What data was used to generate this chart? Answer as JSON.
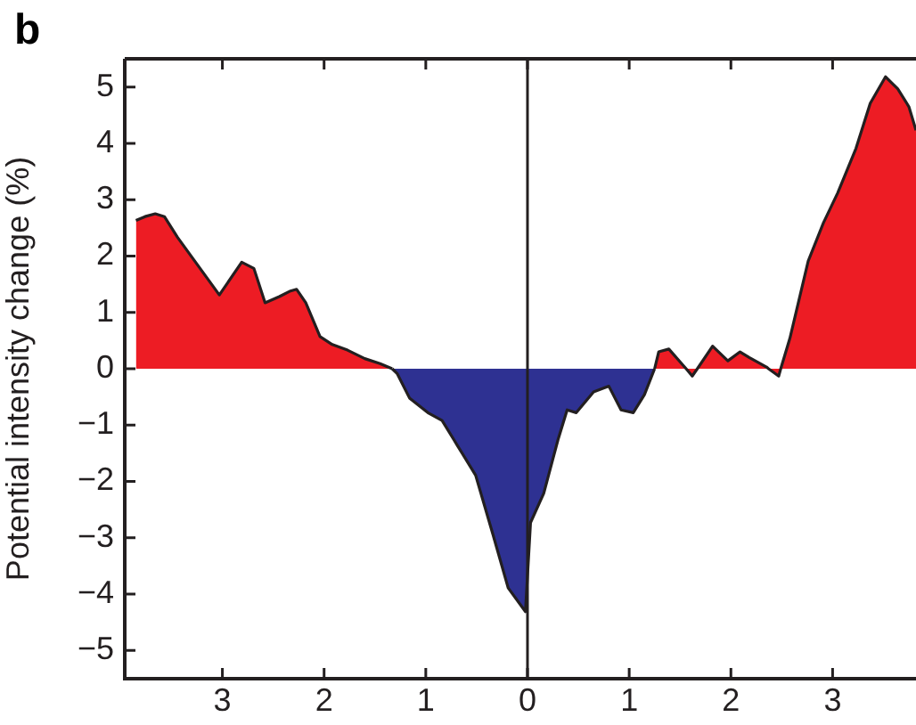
{
  "chart_data": {
    "type": "area",
    "ylabel": "Potential intensity change (%)",
    "annotations": [
      "b"
    ],
    "x": [
      -3.85,
      -3.76,
      -3.66,
      -3.57,
      -3.44,
      -3.03,
      -2.81,
      -2.69,
      -2.58,
      -2.44,
      -2.33,
      -2.27,
      -2.18,
      -2.04,
      -1.92,
      -1.77,
      -1.6,
      -1.45,
      -1.33,
      -1.28,
      -1.16,
      -0.98,
      -0.84,
      -0.69,
      -0.51,
      -0.34,
      -0.19,
      -0.02,
      0.03,
      0.16,
      0.3,
      0.39,
      0.48,
      0.65,
      0.8,
      0.92,
      1.04,
      1.15,
      1.25,
      1.29,
      1.39,
      1.56,
      1.62,
      1.67,
      1.82,
      1.97,
      2.09,
      2.18,
      2.35,
      2.37,
      2.47,
      2.49,
      2.58,
      2.76,
      2.91,
      3.05,
      3.23,
      3.37,
      3.52,
      3.64,
      3.75,
      3.82
    ],
    "series": [
      {
        "color": "#ed1c24",
        "values": [
          2.63,
          2.7,
          2.75,
          2.7,
          2.33,
          1.31,
          1.89,
          1.78,
          1.17,
          1.28,
          1.38,
          1.41,
          1.17,
          0.57,
          0.43,
          0.33,
          0.18,
          0.09,
          0,
          null,
          null,
          null,
          null,
          null,
          null,
          null,
          null,
          null,
          null,
          null,
          null,
          null,
          null,
          null,
          null,
          null,
          null,
          null,
          0,
          0.3,
          0.35,
          0,
          -0.13,
          0,
          0.4,
          0.14,
          0.3,
          0.2,
          0.03,
          0,
          -0.13,
          0,
          0.54,
          1.91,
          2.59,
          3.12,
          3.91,
          4.71,
          5.18,
          4.97,
          4.65,
          4.23
        ]
      },
      {
        "color": "#2e3192",
        "values": [
          null,
          null,
          null,
          null,
          null,
          null,
          null,
          null,
          null,
          null,
          null,
          null,
          null,
          null,
          null,
          null,
          null,
          null,
          0,
          -0.09,
          -0.52,
          -0.78,
          -0.92,
          -1.36,
          -1.89,
          -2.94,
          -3.89,
          -4.31,
          -2.73,
          -2.21,
          -1.26,
          -0.73,
          -0.78,
          -0.41,
          -0.31,
          -0.73,
          -0.78,
          -0.46,
          0,
          null,
          null,
          null,
          null,
          null,
          null,
          null,
          null,
          null,
          null,
          null,
          null,
          null,
          null,
          null,
          null,
          null,
          null,
          null,
          null,
          null,
          null,
          null
        ]
      }
    ],
    "xlim": [
      -3.96,
      3.82
    ],
    "xticks": [
      {
        "value": -3,
        "label": "3"
      },
      {
        "value": -2,
        "label": "2"
      },
      {
        "value": -1,
        "label": "1"
      },
      0,
      1,
      2,
      3
    ],
    "ylim": [
      -5.5,
      5.5
    ],
    "yticks": [
      {
        "value": -5,
        "label": "−5"
      },
      {
        "value": -4,
        "label": "−4"
      },
      {
        "value": -3,
        "label": "−3"
      },
      {
        "value": -2,
        "label": "−2"
      },
      {
        "value": -1,
        "label": "−1"
      },
      0,
      1,
      2,
      3,
      4,
      5
    ],
    "ref_lines": [
      {
        "axis": "x",
        "value": 0,
        "color": "#231f20"
      }
    ],
    "grid": false,
    "legend": false
  }
}
